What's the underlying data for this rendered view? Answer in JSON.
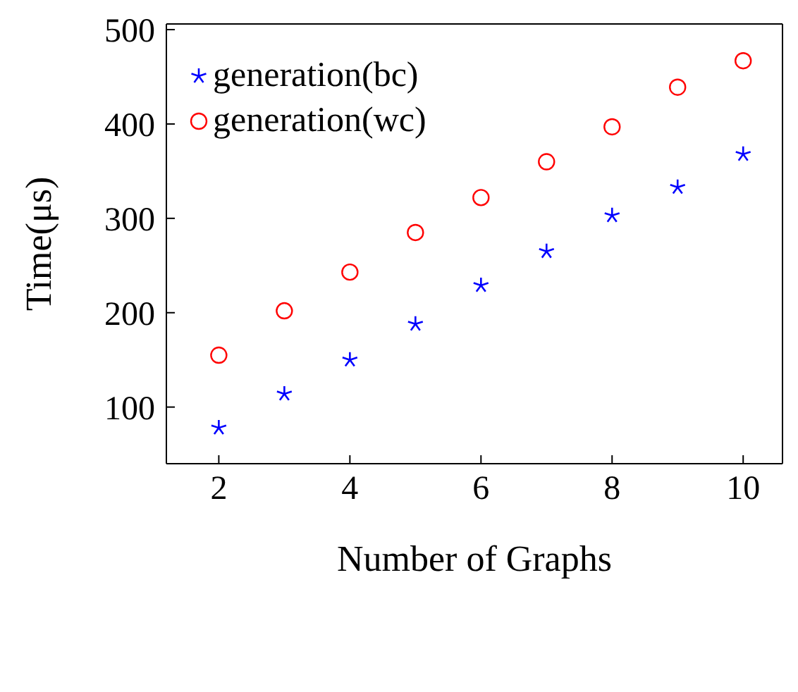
{
  "chart_data": {
    "type": "scatter",
    "xlabel": "Number of Graphs",
    "ylabel": "Time(μs)",
    "x": [
      2,
      3,
      4,
      5,
      6,
      7,
      8,
      9,
      10
    ],
    "series": [
      {
        "name": "generation(bc)",
        "color": "#0000ff",
        "marker": "cross",
        "values": [
          78,
          114,
          150,
          188,
          229,
          265,
          303,
          333,
          368
        ]
      },
      {
        "name": "generation(wc)",
        "color": "#ff0000",
        "marker": "circle",
        "values": [
          155,
          202,
          243,
          285,
          322,
          360,
          397,
          439,
          467
        ]
      }
    ],
    "xlim": [
      1.2,
      10.6
    ],
    "xticks": [
      2,
      4,
      6,
      8,
      10
    ],
    "ylim": [
      40,
      506
    ],
    "yticks": [
      100,
      200,
      300,
      400,
      500
    ],
    "grid": false,
    "legend": "top left"
  }
}
